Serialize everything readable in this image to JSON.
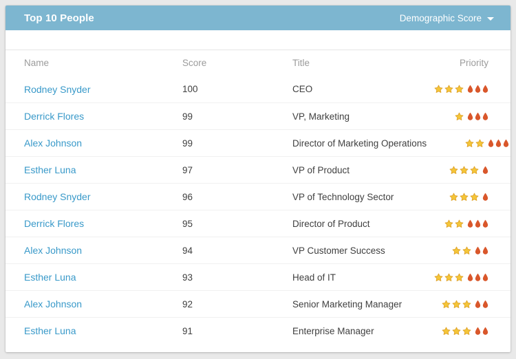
{
  "header": {
    "title": "Top 10 People",
    "dropdown_label": "Demographic Score",
    "dropdown_icon": "caret-down-icon"
  },
  "table": {
    "columns": [
      "Name",
      "Score",
      "Title",
      "Priority"
    ],
    "rows": [
      {
        "name": "Rodney Snyder",
        "score": 100,
        "title": "CEO",
        "priority": {
          "stars": 3,
          "flames": 3
        }
      },
      {
        "name": "Derrick Flores",
        "score": 99,
        "title": "VP, Marketing",
        "priority": {
          "stars": 1,
          "flames": 3
        }
      },
      {
        "name": "Alex Johnson",
        "score": 99,
        "title": "Director of Marketing Operations",
        "priority": {
          "stars": 2,
          "flames": 3
        }
      },
      {
        "name": "Esther Luna",
        "score": 97,
        "title": "VP of Product",
        "priority": {
          "stars": 3,
          "flames": 1
        }
      },
      {
        "name": "Rodney Snyder",
        "score": 96,
        "title": "VP of Technology Sector",
        "priority": {
          "stars": 3,
          "flames": 1
        }
      },
      {
        "name": "Derrick Flores",
        "score": 95,
        "title": "Director of Product",
        "priority": {
          "stars": 2,
          "flames": 3
        }
      },
      {
        "name": "Alex Johnson",
        "score": 94,
        "title": "VP Customer Success",
        "priority": {
          "stars": 2,
          "flames": 2
        }
      },
      {
        "name": "Esther Luna",
        "score": 93,
        "title": "Head of IT",
        "priority": {
          "stars": 3,
          "flames": 3
        }
      },
      {
        "name": "Alex Johnson",
        "score": 92,
        "title": "Senior Marketing Manager",
        "priority": {
          "stars": 3,
          "flames": 2
        }
      },
      {
        "name": "Esther Luna",
        "score": 91,
        "title": "Enterprise Manager",
        "priority": {
          "stars": 3,
          "flames": 2
        }
      }
    ],
    "priority_icons": {
      "star": "star-icon",
      "flame": "flame-icon"
    }
  },
  "colors": {
    "header_bg": "#7db6d0",
    "header_text": "#ffffff",
    "link": "#3899c9",
    "body_text": "#3f3f3f",
    "column_header_text": "#9b9b9b",
    "star": "#f5c638",
    "star_outline": "#dfa42c",
    "flame": "#d9572b"
  }
}
